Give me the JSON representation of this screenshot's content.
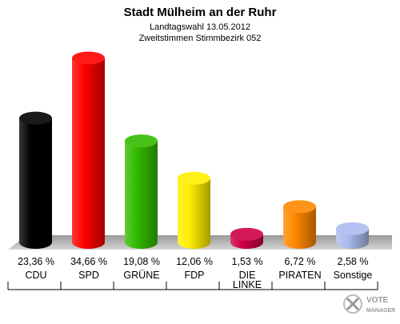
{
  "header": {
    "title": "Stadt Mülheim an der Ruhr",
    "subtitle1": "Landtagswahl 13.05.2012",
    "subtitle2": "Zweitstimmen Stimmbezirk 052"
  },
  "logo": {
    "line1": "VOTE",
    "line2": "MANAGER"
  },
  "chart_data": {
    "type": "bar",
    "title": "Stadt Mülheim an der Ruhr",
    "subtitle": "Landtagswahl 13.05.2012 · Zweitstimmen Stimmbezirk 052",
    "categories": [
      "CDU",
      "SPD",
      "GRÜNE",
      "FDP",
      "DIE LINKE",
      "PIRATEN",
      "Sonstige"
    ],
    "category_lines": [
      [
        "CDU"
      ],
      [
        "SPD"
      ],
      [
        "GRÜNE"
      ],
      [
        "FDP"
      ],
      [
        "DIE",
        "LINKE"
      ],
      [
        "PIRATEN"
      ],
      [
        "Sonstige"
      ]
    ],
    "values": [
      23.36,
      34.66,
      19.08,
      12.06,
      1.53,
      6.72,
      2.58
    ],
    "value_labels": [
      "23,36 %",
      "34,66 %",
      "19,08 %",
      "12,06 %",
      "1,53 %",
      "6,72 %",
      "2,58 %"
    ],
    "colors": [
      "#000000",
      "#ff0000",
      "#33bb00",
      "#ffee00",
      "#cc0044",
      "#ff8800",
      "#aabbee"
    ],
    "unit": "%",
    "grid": false,
    "legend": "none"
  }
}
